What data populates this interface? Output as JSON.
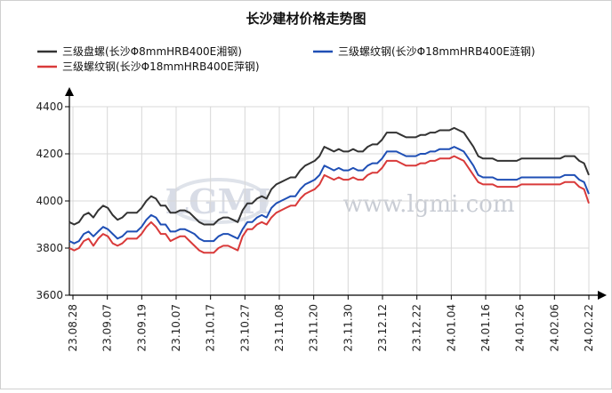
{
  "chart_data": {
    "type": "line",
    "title": "长沙建材价格走势图",
    "xlabel": "",
    "ylabel": "",
    "ylim": [
      3600,
      4400
    ],
    "yticks": [
      3600,
      3800,
      4000,
      4200,
      4400
    ],
    "grid": true,
    "legend_position": "top",
    "x_tick_labels": [
      "23.08.28",
      "23.09.07",
      "23.09.19",
      "23.10.07",
      "23.10.17",
      "23.10.27",
      "23.11.08",
      "23.11.20",
      "23.11.30",
      "23.12.12",
      "23.12.22",
      "24.01.04",
      "24.01.16",
      "24.01.26",
      "24.02.06",
      "24.02.22"
    ],
    "watermark": {
      "logo": "LGMI",
      "site": "www.lgmi.com"
    },
    "series": [
      {
        "name": "三级盘螺(长沙Φ8mmHRB400E湘钢)",
        "color": "#333333",
        "values": [
          3910,
          3900,
          3910,
          3940,
          3950,
          3930,
          3960,
          3980,
          3970,
          3940,
          3920,
          3930,
          3950,
          3950,
          3950,
          3970,
          4000,
          4020,
          4010,
          3980,
          3980,
          3950,
          3950,
          3960,
          3960,
          3950,
          3930,
          3910,
          3900,
          3900,
          3900,
          3920,
          3930,
          3930,
          3920,
          3910,
          3960,
          3990,
          3990,
          4010,
          4020,
          4010,
          4050,
          4070,
          4080,
          4090,
          4100,
          4100,
          4130,
          4150,
          4160,
          4170,
          4190,
          4230,
          4220,
          4210,
          4220,
          4210,
          4210,
          4220,
          4210,
          4210,
          4230,
          4240,
          4240,
          4260,
          4290,
          4290,
          4290,
          4280,
          4270,
          4270,
          4270,
          4280,
          4280,
          4290,
          4290,
          4300,
          4300,
          4300,
          4310,
          4300,
          4290,
          4260,
          4230,
          4190,
          4180,
          4180,
          4180,
          4170,
          4170,
          4170,
          4170,
          4170,
          4180,
          4180,
          4180,
          4180,
          4180,
          4180,
          4180,
          4180,
          4180,
          4190,
          4190,
          4190,
          4170,
          4160,
          4110
        ]
      },
      {
        "name": "三级螺纹钢(长沙Φ18mmHRB400E涟钢)",
        "color": "#1f4fb5",
        "values": [
          3830,
          3820,
          3830,
          3860,
          3870,
          3850,
          3870,
          3890,
          3880,
          3860,
          3840,
          3850,
          3870,
          3870,
          3870,
          3890,
          3920,
          3940,
          3930,
          3900,
          3900,
          3870,
          3870,
          3880,
          3880,
          3870,
          3860,
          3840,
          3830,
          3830,
          3830,
          3850,
          3860,
          3860,
          3850,
          3840,
          3880,
          3910,
          3910,
          3930,
          3940,
          3930,
          3970,
          3990,
          4000,
          4010,
          4020,
          4020,
          4050,
          4070,
          4080,
          4090,
          4110,
          4150,
          4140,
          4130,
          4140,
          4130,
          4130,
          4140,
          4130,
          4130,
          4150,
          4160,
          4160,
          4180,
          4210,
          4210,
          4210,
          4200,
          4190,
          4190,
          4190,
          4200,
          4200,
          4210,
          4210,
          4220,
          4220,
          4220,
          4230,
          4220,
          4210,
          4180,
          4150,
          4110,
          4100,
          4100,
          4100,
          4090,
          4090,
          4090,
          4090,
          4090,
          4100,
          4100,
          4100,
          4100,
          4100,
          4100,
          4100,
          4100,
          4100,
          4110,
          4110,
          4110,
          4090,
          4080,
          4030
        ]
      },
      {
        "name": "三级螺纹钢(长沙Φ18mmHRB400E萍钢)",
        "color": "#d93a3a",
        "values": [
          3800,
          3790,
          3800,
          3830,
          3840,
          3810,
          3840,
          3860,
          3850,
          3820,
          3810,
          3820,
          3840,
          3840,
          3840,
          3860,
          3890,
          3910,
          3890,
          3860,
          3860,
          3830,
          3840,
          3850,
          3850,
          3830,
          3810,
          3790,
          3780,
          3780,
          3780,
          3800,
          3810,
          3810,
          3800,
          3790,
          3850,
          3880,
          3880,
          3900,
          3910,
          3900,
          3930,
          3950,
          3960,
          3970,
          3980,
          3980,
          4010,
          4030,
          4040,
          4050,
          4070,
          4110,
          4100,
          4090,
          4100,
          4090,
          4090,
          4100,
          4090,
          4090,
          4110,
          4120,
          4120,
          4140,
          4170,
          4170,
          4170,
          4160,
          4150,
          4150,
          4150,
          4160,
          4160,
          4170,
          4170,
          4180,
          4180,
          4180,
          4190,
          4180,
          4170,
          4140,
          4110,
          4080,
          4070,
          4070,
          4070,
          4060,
          4060,
          4060,
          4060,
          4060,
          4070,
          4070,
          4070,
          4070,
          4070,
          4070,
          4070,
          4070,
          4070,
          4080,
          4080,
          4080,
          4060,
          4050,
          3990
        ]
      }
    ]
  }
}
